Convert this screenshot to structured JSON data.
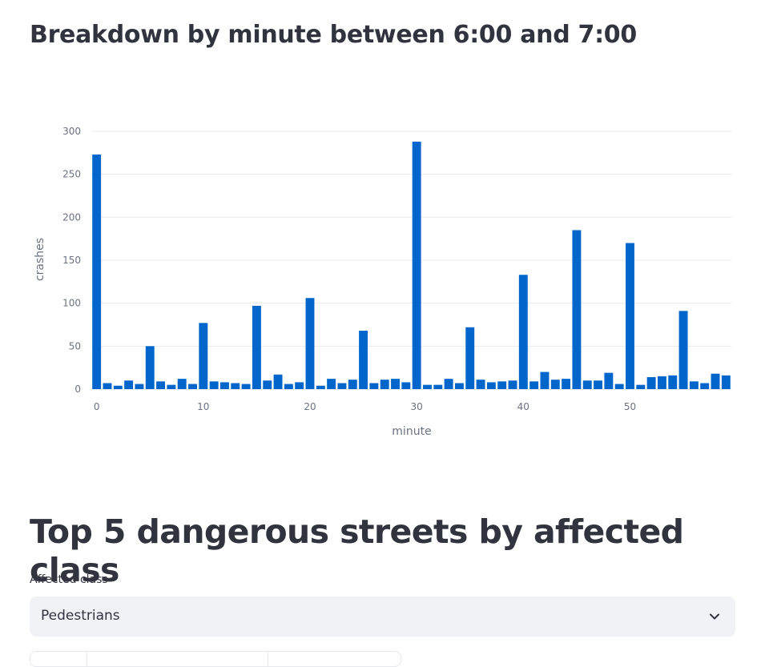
{
  "section_chart": {
    "title": "Breakdown by minute between 6:00 and 7:00"
  },
  "chart_data": {
    "type": "bar",
    "xlabel": "minute",
    "ylabel": "crashes",
    "x_ticks": [
      "0",
      "10",
      "20",
      "30",
      "40",
      "50"
    ],
    "y_ticks": [
      "0",
      "50",
      "100",
      "150",
      "200",
      "250",
      "300"
    ],
    "ylim": [
      0,
      300
    ],
    "xlim": [
      -0.5,
      59.5
    ],
    "grid": true,
    "bar_color": "#0066cc",
    "x": [
      0,
      1,
      2,
      3,
      4,
      5,
      6,
      7,
      8,
      9,
      10,
      11,
      12,
      13,
      14,
      15,
      16,
      17,
      18,
      19,
      20,
      21,
      22,
      23,
      24,
      25,
      26,
      27,
      28,
      29,
      30,
      31,
      32,
      33,
      34,
      35,
      36,
      37,
      38,
      39,
      40,
      41,
      42,
      43,
      44,
      45,
      46,
      47,
      48,
      49,
      50,
      51,
      52,
      53,
      54,
      55,
      56,
      57,
      58,
      59
    ],
    "values": [
      273,
      7,
      4,
      10,
      6,
      50,
      9,
      5,
      12,
      6,
      77,
      9,
      8,
      7,
      6,
      97,
      10,
      17,
      6,
      8,
      106,
      4,
      12,
      7,
      11,
      68,
      7,
      11,
      12,
      8,
      288,
      5,
      5,
      12,
      7,
      72,
      11,
      8,
      9,
      10,
      133,
      9,
      20,
      11,
      12,
      185,
      10,
      10,
      19,
      6,
      170,
      5,
      14,
      15,
      16,
      91,
      9,
      7,
      18,
      16
    ]
  },
  "section_streets": {
    "title": "Top 5 dangerous streets by affected class"
  },
  "affected_select": {
    "label": "Affected class",
    "value": "Pedestrians"
  },
  "icons": {
    "dropdown": "chevron-down-icon"
  }
}
